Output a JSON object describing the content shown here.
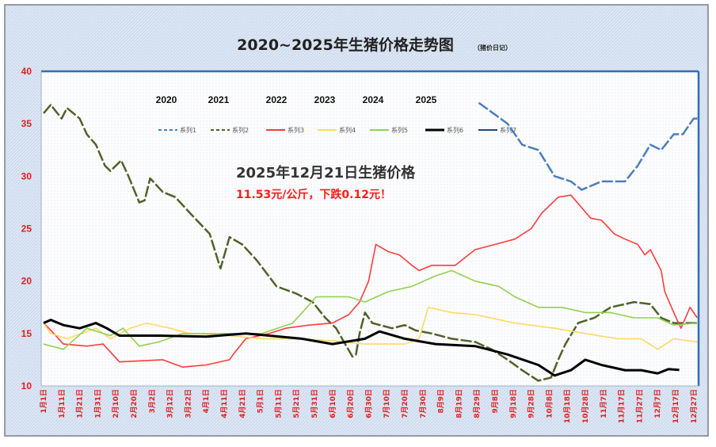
{
  "chart_data": {
    "type": "line",
    "title": "2020~2025年生猪价格走势图",
    "subtitle": "（猪价日记）",
    "xlabel": "",
    "ylabel": "",
    "ylim": [
      10,
      40
    ],
    "yticks": [
      10,
      15,
      20,
      25,
      30,
      35,
      40
    ],
    "xlim_days": [
      -1,
      363
    ],
    "grid": false,
    "legend_position": "top",
    "xtick_labels": [
      "1月1日",
      "1月11日",
      "1月21日",
      "1月31日",
      "2月10日",
      "2月20日",
      "3月2日",
      "3月12日",
      "3月22日",
      "4月1日",
      "4月11日",
      "4月21日",
      "5月1日",
      "5月11日",
      "5月21日",
      "5月31日",
      "6月10日",
      "6月20日",
      "6月30日",
      "7月10日",
      "7月20日",
      "7月30日",
      "8月9日",
      "8月19日",
      "8月29日",
      "9月8日",
      "9月18日",
      "9月28日",
      "10月8日",
      "10月18日",
      "10月28日",
      "11月7日",
      "11月17日",
      "11月27日",
      "12月7日",
      "12月17日",
      "12月27日"
    ],
    "year_labels": [
      "2020",
      "2021",
      "2022",
      "2023",
      "2024",
      "2025"
    ],
    "annotation": {
      "line1": "2025年12月21日生猪价格",
      "line2": "11.53元/公斤，下跌0.12元！"
    },
    "series": [
      {
        "name": "系列1",
        "color": "#4a7ebb",
        "dash": true,
        "points": [
          [
            241,
            37
          ],
          [
            257,
            35
          ],
          [
            265,
            33
          ],
          [
            274,
            32.5
          ],
          [
            283,
            30
          ],
          [
            292,
            29.5
          ],
          [
            298,
            28.7
          ],
          [
            309,
            29.5
          ],
          [
            322,
            29.5
          ],
          [
            329,
            31
          ],
          [
            336,
            33
          ],
          [
            342,
            32.5
          ],
          [
            349,
            34
          ],
          [
            354,
            34
          ],
          [
            360,
            35.5
          ],
          [
            362,
            35.5
          ]
        ]
      },
      {
        "name": "系列2",
        "color": "#4f6228",
        "dash": true,
        "points": [
          [
            0,
            36
          ],
          [
            4,
            36.8
          ],
          [
            10,
            35.5
          ],
          [
            13,
            36.5
          ],
          [
            20,
            35.5
          ],
          [
            24,
            34
          ],
          [
            29,
            33
          ],
          [
            34,
            31
          ],
          [
            37,
            30.5
          ],
          [
            43,
            31.5
          ],
          [
            47,
            30
          ],
          [
            53,
            27.5
          ],
          [
            56,
            27.7
          ],
          [
            59,
            29.8
          ],
          [
            66,
            28.5
          ],
          [
            73,
            28
          ],
          [
            81,
            26.5
          ],
          [
            92,
            24.5
          ],
          [
            98,
            21.2
          ],
          [
            103,
            24.2
          ],
          [
            110,
            23.5
          ],
          [
            118,
            22
          ],
          [
            129,
            19.5
          ],
          [
            140,
            18.8
          ],
          [
            149,
            18
          ],
          [
            156,
            16.5
          ],
          [
            162,
            15.5
          ],
          [
            167,
            14
          ],
          [
            171,
            12.8
          ],
          [
            173,
            13
          ],
          [
            175,
            15
          ],
          [
            178,
            17
          ],
          [
            182,
            16
          ],
          [
            193,
            15.5
          ],
          [
            200,
            15.8
          ],
          [
            206,
            15.3
          ],
          [
            215,
            15
          ],
          [
            226,
            14.5
          ],
          [
            239,
            14.2
          ],
          [
            248,
            13.5
          ],
          [
            257,
            12.5
          ],
          [
            265,
            11.5
          ],
          [
            274,
            10.5
          ],
          [
            281,
            10.8
          ],
          [
            285,
            12.5
          ],
          [
            289,
            14
          ],
          [
            296,
            16
          ],
          [
            305,
            16.5
          ],
          [
            314,
            17.5
          ],
          [
            327,
            18
          ],
          [
            336,
            17.8
          ],
          [
            342,
            16.5
          ],
          [
            349,
            16
          ],
          [
            362,
            16
          ]
        ]
      },
      {
        "name": "系列3",
        "color": "#ff3b3b",
        "dash": false,
        "points": [
          [
            0,
            16
          ],
          [
            3,
            15.5
          ],
          [
            11,
            14
          ],
          [
            24,
            13.8
          ],
          [
            33,
            14
          ],
          [
            42,
            12.3
          ],
          [
            55,
            12.4
          ],
          [
            66,
            12.5
          ],
          [
            77,
            11.8
          ],
          [
            90,
            12
          ],
          [
            103,
            12.5
          ],
          [
            105,
            13
          ],
          [
            112,
            14.5
          ],
          [
            125,
            15
          ],
          [
            134,
            15.5
          ],
          [
            147,
            15.8
          ],
          [
            160,
            16
          ],
          [
            169,
            16.8
          ],
          [
            175,
            18
          ],
          [
            180,
            20
          ],
          [
            184,
            23.5
          ],
          [
            191,
            22.8
          ],
          [
            197,
            22.5
          ],
          [
            204,
            21.5
          ],
          [
            208,
            21
          ],
          [
            215,
            21.5
          ],
          [
            228,
            21.5
          ],
          [
            239,
            23
          ],
          [
            250,
            23.5
          ],
          [
            261,
            24
          ],
          [
            270,
            25
          ],
          [
            276,
            26.5
          ],
          [
            285,
            28
          ],
          [
            292,
            28.2
          ],
          [
            298,
            27
          ],
          [
            303,
            26
          ],
          [
            309,
            25.8
          ],
          [
            316,
            24.5
          ],
          [
            322,
            24
          ],
          [
            329,
            23.5
          ],
          [
            333,
            22.5
          ],
          [
            336,
            23
          ],
          [
            342,
            21
          ],
          [
            344,
            19
          ],
          [
            349,
            17
          ],
          [
            353,
            15.5
          ],
          [
            358,
            17.5
          ],
          [
            362,
            16.5
          ]
        ]
      },
      {
        "name": "系列4",
        "color": "#ffd966",
        "dash": false,
        "points": [
          [
            0,
            16
          ],
          [
            4,
            15
          ],
          [
            13,
            14.5
          ],
          [
            29,
            15.5
          ],
          [
            37,
            14.5
          ],
          [
            48,
            15.5
          ],
          [
            57,
            16
          ],
          [
            70,
            15.5
          ],
          [
            81,
            15
          ],
          [
            103,
            14.8
          ],
          [
            121,
            14.5
          ],
          [
            143,
            14.5
          ],
          [
            160,
            14.3
          ],
          [
            178,
            14
          ],
          [
            200,
            14
          ],
          [
            208,
            14.5
          ],
          [
            213,
            17.5
          ],
          [
            226,
            17
          ],
          [
            239,
            16.8
          ],
          [
            261,
            16
          ],
          [
            283,
            15.5
          ],
          [
            300,
            15
          ],
          [
            318,
            14.5
          ],
          [
            331,
            14.5
          ],
          [
            340,
            13.5
          ],
          [
            349,
            14.5
          ],
          [
            362,
            14.2
          ]
        ]
      },
      {
        "name": "系列5",
        "color": "#92d050",
        "dash": false,
        "points": [
          [
            0,
            14
          ],
          [
            11,
            13.5
          ],
          [
            24,
            15.5
          ],
          [
            37,
            14.8
          ],
          [
            44,
            15.5
          ],
          [
            53,
            13.8
          ],
          [
            64,
            14.2
          ],
          [
            77,
            15
          ],
          [
            99,
            15
          ],
          [
            121,
            15
          ],
          [
            138,
            16
          ],
          [
            151,
            18.5
          ],
          [
            169,
            18.5
          ],
          [
            178,
            18
          ],
          [
            191,
            19
          ],
          [
            204,
            19.5
          ],
          [
            217,
            20.5
          ],
          [
            226,
            21
          ],
          [
            239,
            20
          ],
          [
            252,
            19.5
          ],
          [
            261,
            18.5
          ],
          [
            274,
            17.5
          ],
          [
            287,
            17.5
          ],
          [
            300,
            17
          ],
          [
            314,
            17
          ],
          [
            327,
            16.5
          ],
          [
            340,
            16.5
          ],
          [
            349,
            15.8
          ],
          [
            362,
            16
          ]
        ]
      },
      {
        "name": "系列6",
        "color": "#000000",
        "dash": false,
        "points": [
          [
            0,
            16
          ],
          [
            4,
            16.3
          ],
          [
            11,
            15.8
          ],
          [
            20,
            15.5
          ],
          [
            29,
            16
          ],
          [
            35,
            15.5
          ],
          [
            42,
            14.8
          ],
          [
            64,
            14.8
          ],
          [
            90,
            14.7
          ],
          [
            112,
            15
          ],
          [
            125,
            14.8
          ],
          [
            143,
            14.5
          ],
          [
            160,
            14
          ],
          [
            178,
            14.5
          ],
          [
            186,
            15.2
          ],
          [
            200,
            14.5
          ],
          [
            217,
            14
          ],
          [
            239,
            13.8
          ],
          [
            257,
            13
          ],
          [
            274,
            12
          ],
          [
            283,
            11
          ],
          [
            292,
            11.5
          ],
          [
            300,
            12.5
          ],
          [
            309,
            12
          ],
          [
            322,
            11.5
          ],
          [
            331,
            11.5
          ],
          [
            340,
            11.2
          ],
          [
            346,
            11.6
          ],
          [
            352,
            11.53
          ]
        ]
      },
      {
        "name": "系列7",
        "color": "#1f497d",
        "dash": false,
        "points": []
      }
    ]
  }
}
